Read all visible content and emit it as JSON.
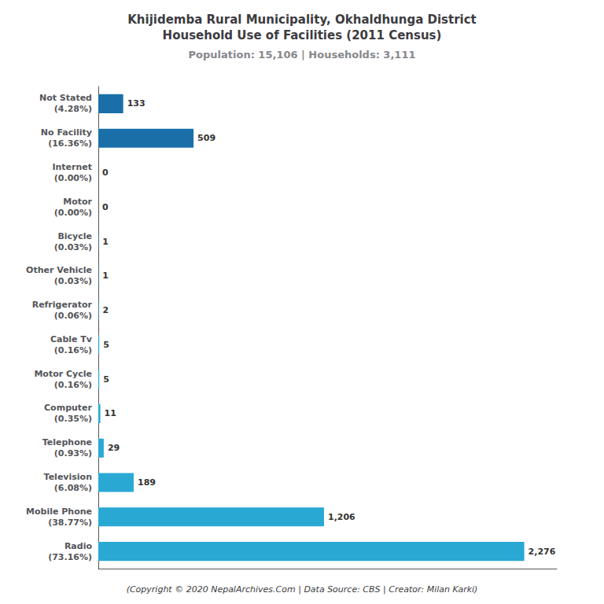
{
  "chart_data": {
    "type": "bar",
    "orientation": "horizontal",
    "title": "Khijidemba Rural Municipality, Okhaldhunga District\nHousehold Use of Facilities (2011 Census)",
    "subtitle": "Population: 15,106 | Households: 3,111",
    "annotations": [
      "(Copyright © 2020 NepalArchives.Com | Data Source: CBS | Creator: Milan Karki)"
    ],
    "categories": [
      "Not Stated\n(4.28%)",
      "No Facility\n(16.36%)",
      "Internet\n(0.00%)",
      "Motor\n(0.00%)",
      "Bicycle\n(0.03%)",
      "Other Vehicle\n(0.03%)",
      "Refrigerator\n(0.06%)",
      "Cable Tv\n(0.16%)",
      "Motor Cycle\n(0.16%)",
      "Computer\n(0.35%)",
      "Telephone\n(0.93%)",
      "Television\n(6.08%)",
      "Mobile Phone\n(38.77%)",
      "Radio\n(73.16%)"
    ],
    "values": [
      133,
      509,
      0,
      0,
      1,
      1,
      2,
      5,
      5,
      11,
      29,
      189,
      1206,
      2276
    ],
    "value_labels": [
      "133",
      "509",
      "0",
      "0",
      "1",
      "1",
      "2",
      "5",
      "5",
      "11",
      "29",
      "189",
      "1,206",
      "2,276"
    ],
    "colors": [
      "#1a6fa8",
      "#1a6fa8",
      "#29a8d4",
      "#29a8d4",
      "#29a8d4",
      "#29a8d4",
      "#29a8d4",
      "#29a8d4",
      "#29a8d4",
      "#29a8d4",
      "#29a8d4",
      "#29a8d4",
      "#29a8d4",
      "#29a8d4"
    ],
    "xlim": [
      0,
      2450
    ],
    "grid": false,
    "data_labels": true,
    "tick_labels": "y"
  }
}
